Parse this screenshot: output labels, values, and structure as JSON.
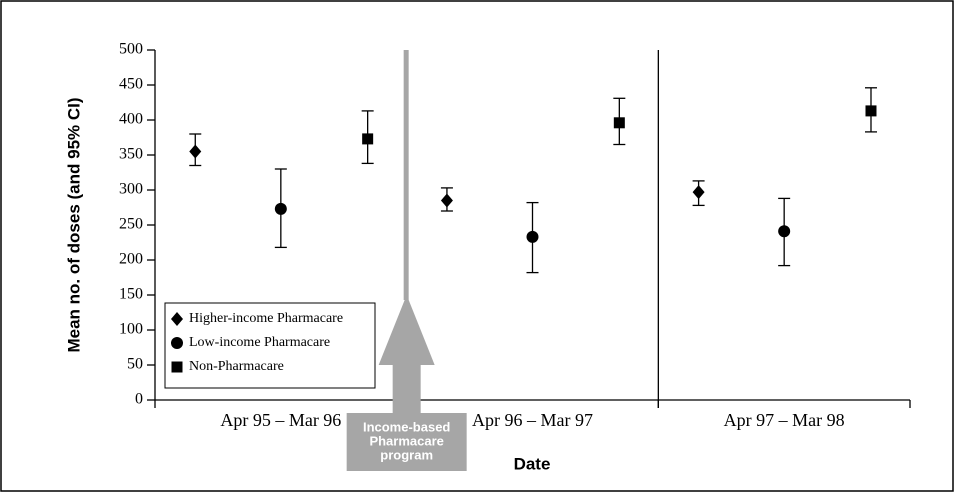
{
  "chart_data": {
    "type": "errorbar",
    "x_label": "Date",
    "y_label": "Mean no. of doses (and 95% CI)",
    "categories": [
      "Apr 95 – Mar 96",
      "Apr 96 – Mar 97",
      "Apr 97 – Mar 98"
    ],
    "series": [
      {
        "name": "Higher-income Pharmacare",
        "marker": "diamond",
        "color": "#000000",
        "values": [
          355,
          285,
          297
        ],
        "lower": [
          335,
          270,
          278
        ],
        "upper": [
          380,
          303,
          313
        ]
      },
      {
        "name": "Low-income Pharmacare",
        "marker": "circle",
        "color": "#000000",
        "values": [
          273,
          233,
          241
        ],
        "lower": [
          218,
          182,
          192
        ],
        "upper": [
          330,
          282,
          288
        ]
      },
      {
        "name": "Non-Pharmacare",
        "marker": "square",
        "color": "#000000",
        "values": [
          373,
          396,
          413
        ],
        "lower": [
          338,
          365,
          383
        ],
        "upper": [
          413,
          431,
          446
        ]
      }
    ],
    "annotation": [
      "Income-based",
      "Pharmacare",
      "program"
    ],
    "annotation_color": "#a6a6a6",
    "ylim": [
      0,
      500
    ],
    "yticks": [
      0,
      50,
      100,
      150,
      200,
      250,
      300,
      350,
      400,
      450,
      500
    ],
    "legend": "lower left"
  }
}
